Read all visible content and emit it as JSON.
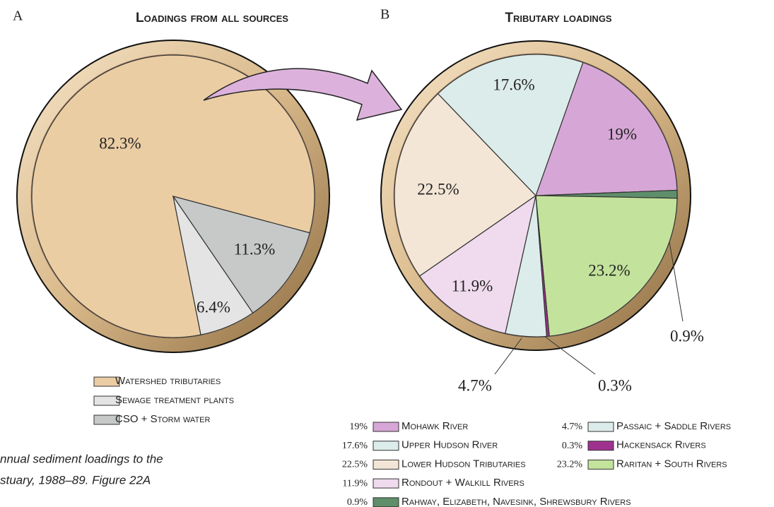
{
  "chart_data": [
    {
      "type": "pie",
      "panel": "A",
      "title": "Loadings from all sources",
      "series": [
        {
          "name": "Watershed tributaries",
          "color": "#ebcda4",
          "values": [
            82.3
          ],
          "value_labels": [
            "82.3%"
          ]
        },
        {
          "name": "Sewage treatment plants",
          "color": "#e4e4e4",
          "values": [
            6.4
          ],
          "value_labels": [
            "6.4%"
          ]
        },
        {
          "name": "CSO + Storm water",
          "color": "#c6c9c8",
          "values": [
            11.3
          ],
          "value_labels": [
            "11.3%"
          ]
        }
      ]
    },
    {
      "type": "pie",
      "panel": "B",
      "title": "Tributary loadings",
      "series": [
        {
          "name": "Mohawk River",
          "color": "#d6a7d6",
          "values": [
            19
          ],
          "value_labels": [
            "19%"
          ]
        },
        {
          "name": "Rahway, Elizabeth, Navesink, Shrewsbury Rivers",
          "color": "#5e8f6a",
          "values": [
            0.9
          ],
          "value_labels": [
            "0.9%"
          ]
        },
        {
          "name": "Raritan + South Rivers",
          "color": "#c3e39c",
          "values": [
            23.2
          ],
          "value_labels": [
            "23.2%"
          ]
        },
        {
          "name": "Hackensack Rivers",
          "color": "#a0328f",
          "values": [
            0.3
          ],
          "value_labels": [
            "0.3%"
          ]
        },
        {
          "name": "Passaic + Saddle Rivers",
          "color": "#dcecea",
          "values": [
            4.7
          ],
          "value_labels": [
            "4.7%"
          ]
        },
        {
          "name": "Rondout + Walkill Rivers",
          "color": "#efdaee",
          "values": [
            11.9
          ],
          "value_labels": [
            "11.9%"
          ]
        },
        {
          "name": "Lower Hudson Tributaries",
          "color": "#f3e6d6",
          "values": [
            22.5
          ],
          "value_labels": [
            "22.5%"
          ]
        },
        {
          "name": "Upper Hudson River",
          "color": "#dcecea",
          "values": [
            17.6
          ],
          "value_labels": [
            "17.6%"
          ]
        }
      ]
    }
  ],
  "caption": [
    "nnual sediment loadings to the",
    "stuary, 1988–89. Figure 22A"
  ]
}
